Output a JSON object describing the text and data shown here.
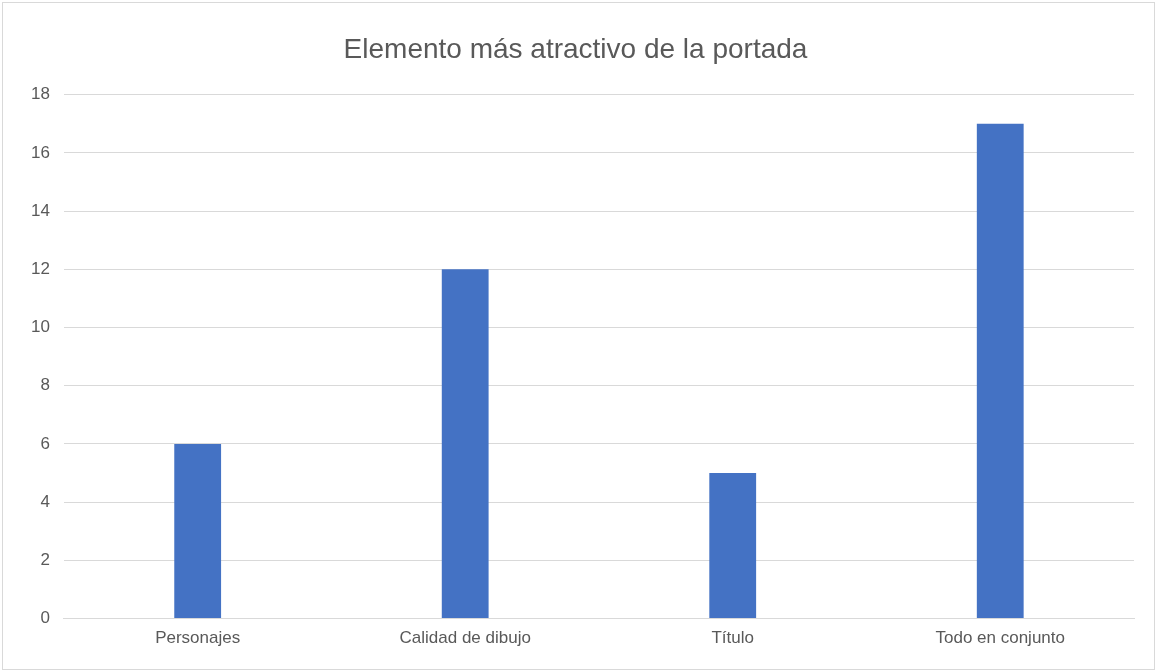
{
  "chart_data": {
    "type": "bar",
    "title": "Elemento más atractivo de la portada",
    "categories": [
      "Personajes",
      "Calidad de dibujo",
      "Título",
      "Todo en conjunto"
    ],
    "values": [
      6,
      12,
      5,
      17
    ],
    "color": "#4472c4",
    "ylim": [
      0,
      18
    ],
    "yticks": [
      0,
      2,
      4,
      6,
      8,
      10,
      12,
      14,
      16,
      18
    ],
    "grid": "y"
  }
}
